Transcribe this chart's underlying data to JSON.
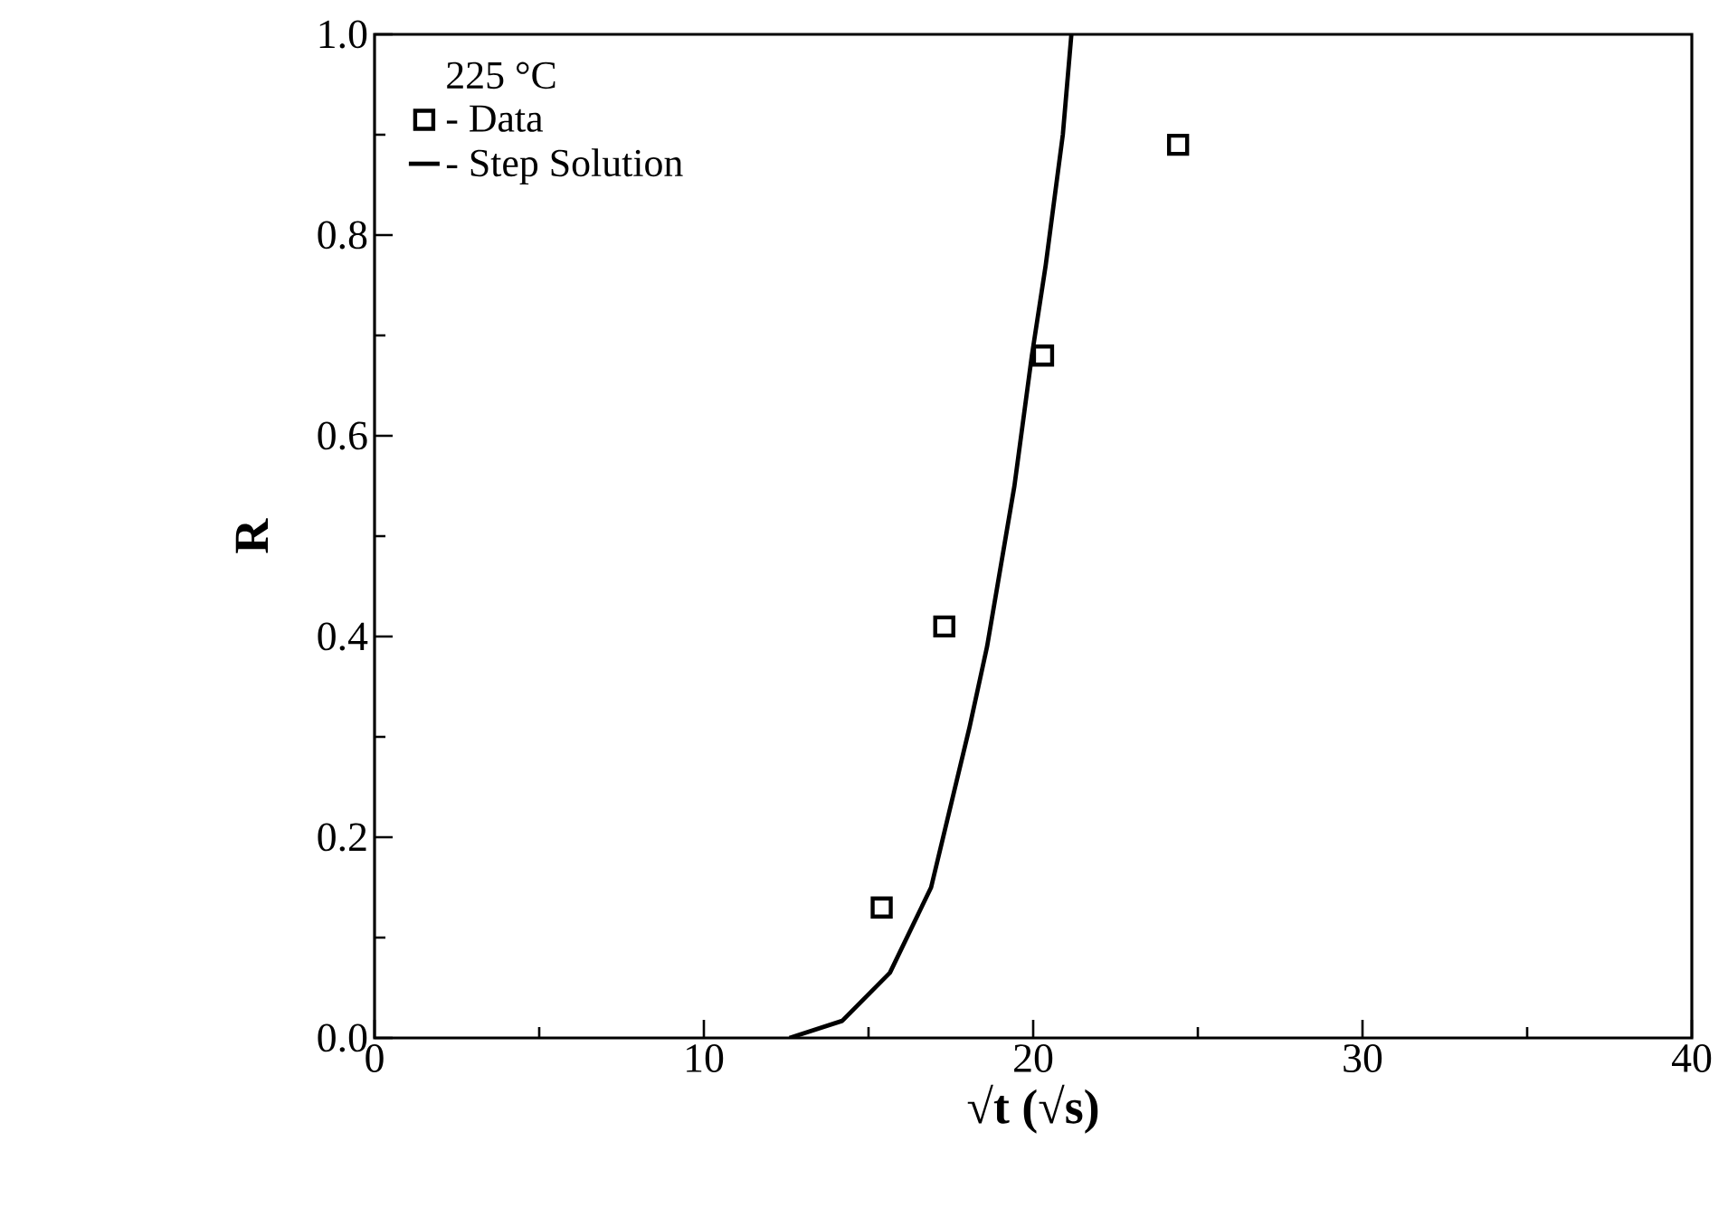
{
  "chart_data": {
    "type": "scatter",
    "xlabel": "**√t (√s)**",
    "ylabel": "**R**",
    "legend_title": "225 °C",
    "legend": "top left",
    "xlim": [
      0,
      40
    ],
    "ylim": [
      0,
      1
    ],
    "xticks": [
      0,
      10,
      20,
      30,
      40
    ],
    "yticks": [
      {
        "value": 0,
        "label": "0.0"
      },
      {
        "value": 0.2,
        "label": "0.2"
      },
      {
        "value": 0.4,
        "label": "0.4"
      },
      {
        "value": 0.6,
        "label": "0.6"
      },
      {
        "value": 0.8,
        "label": "0.8"
      },
      {
        "value": 1,
        "label": "1.0"
      }
    ],
    "series": [
      {
        "name": "- Data",
        "marker": "square",
        "color": "#000000",
        "x": [
          15.4,
          17.3,
          20.3,
          24.4
        ],
        "values": [
          0.13,
          0.41,
          0.68,
          0.89
        ]
      },
      {
        "name": "- Step Solution",
        "type": "line",
        "marker": "none",
        "line_style": "solid",
        "color": "#000000",
        "x": [
          12.6,
          14.2,
          15.65,
          16.9,
          18.07,
          18.6,
          19.43,
          19.96,
          20.38,
          20.9,
          21.16
        ],
        "values": [
          0,
          0.017,
          0.065,
          0.15,
          0.31,
          0.39,
          0.55,
          0.68,
          0.77,
          0.9,
          1.0
        ]
      }
    ]
  }
}
